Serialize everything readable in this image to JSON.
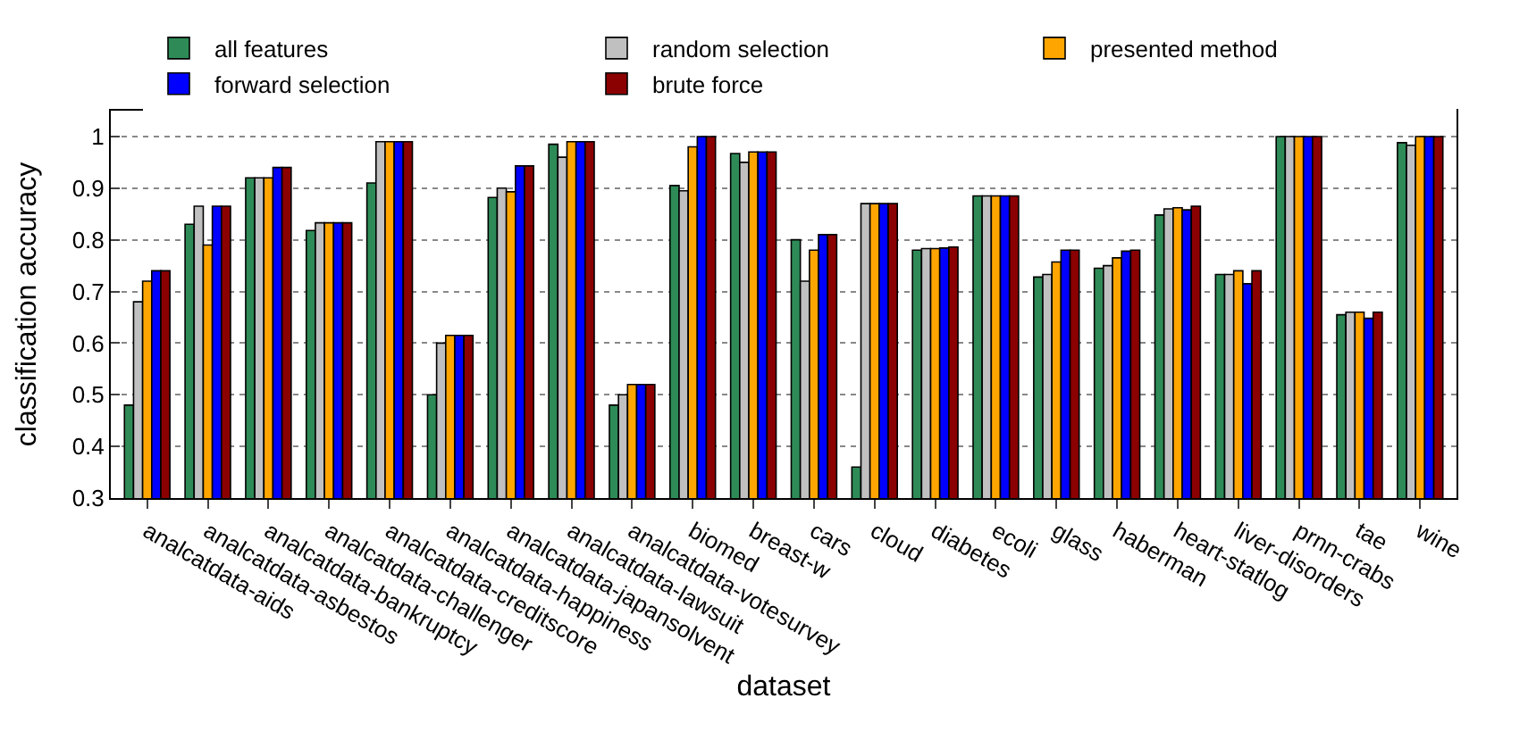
{
  "chart_data": {
    "type": "bar",
    "xlabel": "dataset",
    "ylabel": "classification accuracy",
    "categories": [
      "analcatdata-aids",
      "analcatdata-asbestos",
      "analcatdata-bankruptcy",
      "analcatdata-challenger",
      "analcatdata-creditscore",
      "analcatdata-happiness",
      "analcatdata-japansolvent",
      "analcatdata-lawsuit",
      "analcatdata-votesurvey",
      "biomed",
      "breast-w",
      "cars",
      "cloud",
      "diabetes",
      "ecoli",
      "glass",
      "haberman",
      "heart-statlog",
      "liver-disorders",
      "prnn-crabs",
      "tae",
      "wine"
    ],
    "series": [
      {
        "name": "all features",
        "color": "#2e8b57",
        "values": [
          0.48,
          0.83,
          0.92,
          0.818,
          0.91,
          0.5,
          0.882,
          0.985,
          0.48,
          0.905,
          0.967,
          0.8,
          0.36,
          0.78,
          0.885,
          0.728,
          0.745,
          0.848,
          0.733,
          1.0,
          0.655,
          0.988
        ]
      },
      {
        "name": "random selection",
        "color": "#c0c0c0",
        "values": [
          0.68,
          0.865,
          0.92,
          0.833,
          0.99,
          0.6,
          0.9,
          0.96,
          0.5,
          0.895,
          0.95,
          0.72,
          0.87,
          0.783,
          0.885,
          0.733,
          0.75,
          0.86,
          0.733,
          1.0,
          0.66,
          0.983
        ]
      },
      {
        "name": "presented method",
        "color": "#ffa500",
        "values": [
          0.72,
          0.79,
          0.92,
          0.833,
          0.99,
          0.615,
          0.893,
          0.99,
          0.52,
          0.98,
          0.97,
          0.78,
          0.87,
          0.783,
          0.885,
          0.757,
          0.765,
          0.862,
          0.74,
          1.0,
          0.66,
          1.0
        ]
      },
      {
        "name": "forward selection",
        "color": "#0000ff",
        "values": [
          0.74,
          0.865,
          0.94,
          0.833,
          0.99,
          0.615,
          0.943,
          0.99,
          0.52,
          1.0,
          0.97,
          0.81,
          0.87,
          0.784,
          0.885,
          0.78,
          0.778,
          0.858,
          0.715,
          1.0,
          0.648,
          1.0
        ]
      },
      {
        "name": "brute force",
        "color": "#8b0000",
        "values": [
          0.74,
          0.865,
          0.94,
          0.833,
          0.99,
          0.615,
          0.943,
          0.99,
          0.52,
          1.0,
          0.97,
          0.81,
          0.87,
          0.786,
          0.885,
          0.78,
          0.78,
          0.865,
          0.74,
          1.0,
          0.66,
          1.0
        ]
      }
    ],
    "ylim": [
      0.3,
      1.05
    ],
    "yticks": [
      0.3,
      0.4,
      0.5,
      0.6,
      0.7,
      0.8,
      0.9,
      1
    ],
    "grid": "y",
    "legend": "top"
  }
}
